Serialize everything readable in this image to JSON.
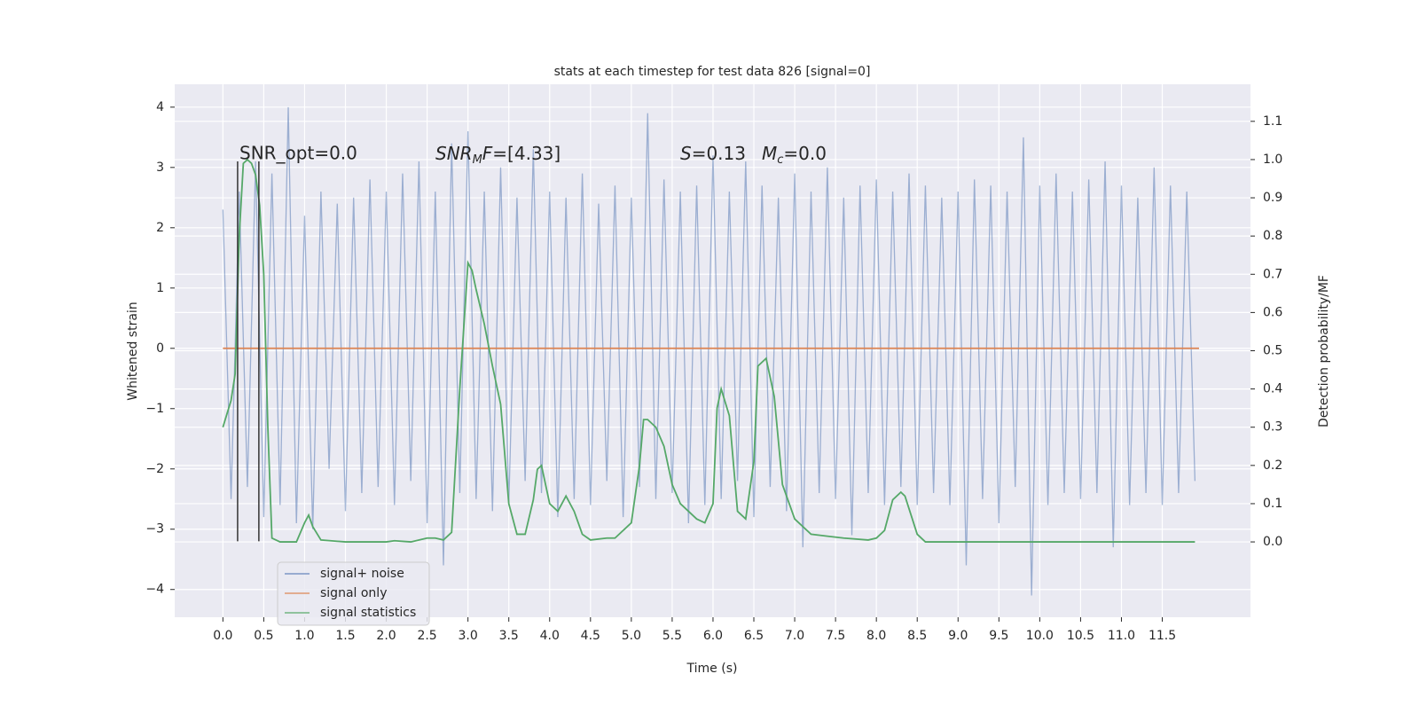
{
  "chart_data": {
    "type": "line",
    "title": "stats at each timestep for test data 826 [signal=0]",
    "x_label": "Time (s)",
    "y_label": "Whitened strain",
    "y2_label": "Detection probability/MF",
    "xlim": [
      -0.59,
      12.58
    ],
    "ylim": [
      -4.46,
      4.38
    ],
    "y2lim": [
      -0.197,
      1.197
    ],
    "grid": true,
    "legend": "lower left",
    "xticks": [
      {
        "value": 0,
        "label": "0.0"
      },
      0.5,
      {
        "value": 1,
        "label": "1.0"
      },
      1.5,
      {
        "value": 2,
        "label": "2.0"
      },
      2.5,
      {
        "value": 3,
        "label": "3.0"
      },
      3.5,
      {
        "value": 4,
        "label": "4.0"
      },
      4.5,
      {
        "value": 5,
        "label": "5.0"
      },
      5.5,
      {
        "value": 6,
        "label": "6.0"
      },
      6.5,
      {
        "value": 7,
        "label": "7.0"
      },
      7.5,
      {
        "value": 8,
        "label": "8.0"
      },
      8.5,
      {
        "value": 9,
        "label": "9.0"
      },
      9.5,
      {
        "value": 10,
        "label": "10.0"
      },
      10.5,
      {
        "value": 11,
        "label": "11.0"
      },
      11.5
    ],
    "yticks": [
      {
        "value": -4,
        "label": "−4"
      },
      {
        "value": -3,
        "label": "−3"
      },
      {
        "value": -2,
        "label": "−2"
      },
      {
        "value": -1,
        "label": "−1"
      },
      0,
      1,
      2,
      3,
      4
    ],
    "y2ticks": [
      {
        "value": 0,
        "label": "0.0"
      },
      0.1,
      0.2,
      0.3,
      0.4,
      0.5,
      0.6,
      0.7,
      0.8,
      0.9,
      {
        "value": 1,
        "label": "1.0"
      },
      1.1
    ],
    "annotations": {
      "snr_opt": "SNR_opt=0.0",
      "snr_mf": [
        "SNR",
        "M",
        "F",
        "=[4.33]"
      ],
      "s": [
        "S",
        "=0.13"
      ],
      "mc": [
        "M",
        "c",
        "=0.0"
      ]
    },
    "vlines": {
      "x": [
        0.18,
        0.44
      ],
      "ymin": -3.2,
      "ymax": 3.1,
      "color": "#333333"
    },
    "series": [
      {
        "name": "signal+ noise",
        "color": "#4c72b0",
        "axis": "y",
        "x": [
          0.0,
          0.1,
          0.2,
          0.3,
          0.4,
          0.5,
          0.6,
          0.7,
          0.8,
          0.9,
          1.0,
          1.1,
          1.2,
          1.3,
          1.4,
          1.5,
          1.6,
          1.7,
          1.8,
          1.9,
          2.0,
          2.1,
          2.2,
          2.3,
          2.4,
          2.5,
          2.6,
          2.7,
          2.8,
          2.9,
          3.0,
          3.1,
          3.2,
          3.3,
          3.4,
          3.5,
          3.6,
          3.7,
          3.8,
          3.9,
          4.0,
          4.1,
          4.2,
          4.3,
          4.4,
          4.5,
          4.6,
          4.7,
          4.8,
          4.9,
          5.0,
          5.1,
          5.2,
          5.3,
          5.4,
          5.5,
          5.6,
          5.7,
          5.8,
          5.9,
          6.0,
          6.1,
          6.2,
          6.3,
          6.4,
          6.5,
          6.6,
          6.7,
          6.8,
          6.9,
          7.0,
          7.1,
          7.2,
          7.3,
          7.4,
          7.5,
          7.6,
          7.7,
          7.8,
          7.9,
          8.0,
          8.1,
          8.2,
          8.3,
          8.4,
          8.5,
          8.6,
          8.7,
          8.8,
          8.9,
          9.0,
          9.1,
          9.2,
          9.3,
          9.4,
          9.5,
          9.6,
          9.7,
          9.8,
          9.9,
          10.0,
          10.1,
          10.2,
          10.3,
          10.4,
          10.5,
          10.6,
          10.7,
          10.8,
          10.9,
          11.0,
          11.1,
          11.2,
          11.3,
          11.4,
          11.5,
          11.6,
          11.7,
          11.8,
          11.9
        ],
        "values": [
          2.3,
          -2.5,
          2.6,
          -2.3,
          3.1,
          -2.8,
          2.9,
          -2.6,
          4.0,
          -2.9,
          2.2,
          -3.0,
          2.6,
          -2.0,
          2.4,
          -2.7,
          2.5,
          -2.4,
          2.8,
          -2.3,
          2.6,
          -2.6,
          2.9,
          -2.2,
          3.1,
          -2.9,
          2.6,
          -3.6,
          3.4,
          -2.4,
          3.6,
          -2.5,
          2.6,
          -2.7,
          3.0,
          -2.6,
          2.5,
          -2.2,
          3.3,
          -2.4,
          2.6,
          -2.8,
          2.5,
          -2.5,
          2.9,
          -2.6,
          2.4,
          -2.2,
          2.7,
          -2.8,
          2.5,
          -2.3,
          3.9,
          -2.5,
          2.8,
          -2.4,
          2.6,
          -2.9,
          2.7,
          -2.6,
          3.2,
          -2.5,
          2.6,
          -2.2,
          3.1,
          -2.8,
          2.7,
          -2.3,
          2.5,
          -2.7,
          2.9,
          -3.3,
          2.6,
          -2.4,
          3.0,
          -2.5,
          2.5,
          -3.1,
          2.7,
          -2.4,
          2.8,
          -2.6,
          2.6,
          -2.3,
          2.9,
          -2.6,
          2.7,
          -2.4,
          2.5,
          -2.6,
          2.6,
          -3.6,
          2.8,
          -2.5,
          2.7,
          -2.9,
          2.6,
          -2.3,
          3.5,
          -4.1,
          2.7,
          -2.6,
          2.9,
          -2.4,
          2.6,
          -2.5,
          2.8,
          -2.4,
          3.1,
          -3.3,
          2.7,
          -2.6,
          2.5,
          -2.4,
          3.0,
          -2.6,
          2.7,
          -2.4,
          2.6,
          -2.2
        ]
      },
      {
        "name": "signal only",
        "color": "#dd8452",
        "axis": "y",
        "x": [
          0.0,
          11.95
        ],
        "values": [
          0,
          0
        ]
      },
      {
        "name": "signal statistics",
        "color": "#55a868",
        "axis": "y2",
        "x": [
          0.0,
          0.1,
          0.15,
          0.2,
          0.25,
          0.3,
          0.35,
          0.4,
          0.45,
          0.5,
          0.55,
          0.6,
          0.7,
          0.9,
          1.0,
          1.05,
          1.1,
          1.2,
          1.5,
          2.0,
          2.1,
          2.3,
          2.5,
          2.6,
          2.7,
          2.8,
          2.9,
          3.0,
          3.05,
          3.1,
          3.2,
          3.3,
          3.4,
          3.5,
          3.6,
          3.7,
          3.8,
          3.85,
          3.9,
          4.0,
          4.1,
          4.2,
          4.3,
          4.4,
          4.5,
          4.7,
          4.8,
          5.0,
          5.1,
          5.15,
          5.2,
          5.3,
          5.4,
          5.5,
          5.6,
          5.7,
          5.8,
          5.9,
          6.0,
          6.05,
          6.1,
          6.2,
          6.3,
          6.4,
          6.5,
          6.55,
          6.65,
          6.75,
          6.85,
          7.0,
          7.2,
          7.4,
          7.6,
          7.9,
          8.0,
          8.1,
          8.2,
          8.3,
          8.35,
          8.5,
          8.6,
          9.0,
          11.9
        ],
        "values": [
          0.3,
          0.37,
          0.44,
          0.8,
          0.99,
          1.0,
          0.99,
          0.96,
          0.88,
          0.7,
          0.3,
          0.01,
          0.0,
          0.0,
          0.05,
          0.07,
          0.04,
          0.005,
          0.0,
          0.0,
          0.003,
          0.0,
          0.01,
          0.01,
          0.005,
          0.025,
          0.4,
          0.73,
          0.71,
          0.66,
          0.57,
          0.46,
          0.36,
          0.1,
          0.02,
          0.02,
          0.11,
          0.19,
          0.2,
          0.1,
          0.08,
          0.12,
          0.08,
          0.02,
          0.005,
          0.01,
          0.01,
          0.05,
          0.2,
          0.32,
          0.32,
          0.3,
          0.25,
          0.15,
          0.1,
          0.08,
          0.06,
          0.05,
          0.1,
          0.35,
          0.4,
          0.33,
          0.08,
          0.06,
          0.21,
          0.46,
          0.48,
          0.38,
          0.15,
          0.06,
          0.02,
          0.015,
          0.01,
          0.005,
          0.01,
          0.03,
          0.11,
          0.13,
          0.12,
          0.02,
          0.0,
          0.0,
          0.0
        ]
      }
    ]
  }
}
